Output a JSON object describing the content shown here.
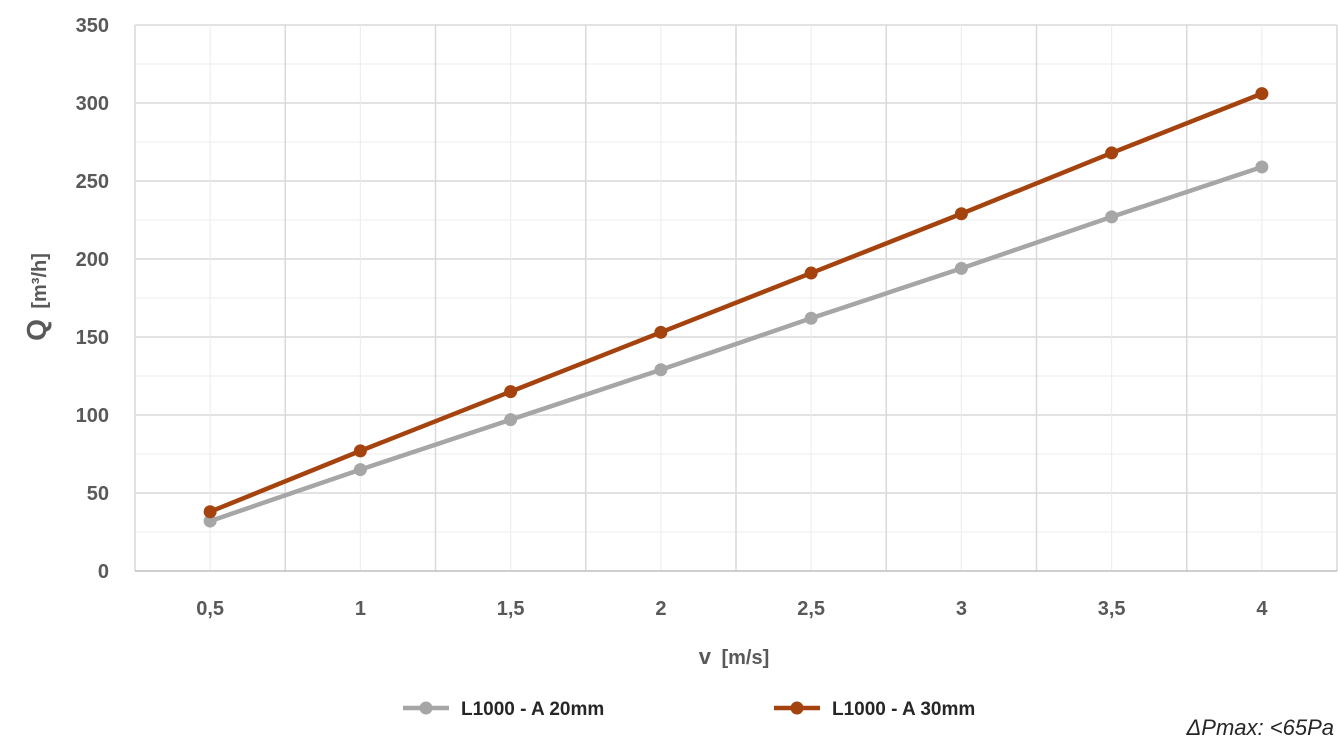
{
  "chart_data": {
    "type": "line",
    "title": "",
    "xlabel": "v [m/s]",
    "xlabel_main": "v",
    "xlabel_unit": "[m/s]",
    "ylabel": "Q [m³/h]",
    "ylabel_main": "Q",
    "ylabel_unit": "[m³/h]",
    "categories": [
      "0,5",
      "1",
      "1,5",
      "2",
      "2,5",
      "3",
      "3,5",
      "4"
    ],
    "x": [
      0.5,
      1,
      1.5,
      2,
      2.5,
      3,
      3.5,
      4
    ],
    "ylim": [
      0,
      350
    ],
    "yticks": [
      0,
      50,
      100,
      150,
      200,
      250,
      300,
      350
    ],
    "grid": true,
    "legend_position": "bottom",
    "series": [
      {
        "name": "L1000 - A 20mm",
        "color": "#a6a6a6",
        "values": [
          32,
          65,
          97,
          129,
          162,
          194,
          227,
          259
        ]
      },
      {
        "name": "L1000 - A 30mm",
        "color": "#a5430f",
        "values": [
          38,
          77,
          115,
          153,
          191,
          229,
          268,
          306
        ]
      }
    ],
    "annotation": "ΔPmax: <65Pa"
  }
}
